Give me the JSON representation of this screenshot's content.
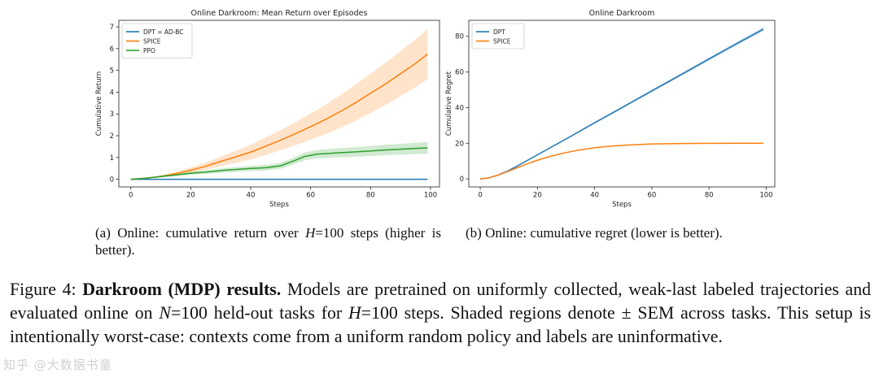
{
  "chart_data": [
    {
      "type": "line",
      "title": "Online Darkroom: Mean Return over Episodes",
      "xlabel": "Steps",
      "ylabel": "Cumulative Return",
      "xlim": [
        -4,
        103
      ],
      "ylim": [
        -0.35,
        7.3
      ],
      "xticks": [
        0,
        20,
        40,
        60,
        80,
        100
      ],
      "yticks": [
        0,
        1,
        2,
        3,
        4,
        5,
        6,
        7
      ],
      "legend_position": "top-left",
      "series": [
        {
          "name": "DPT = AD-BC",
          "color": "#1f77b4",
          "x": [
            0,
            20,
            40,
            60,
            80,
            99
          ],
          "y": [
            0,
            0,
            0,
            0,
            0,
            0
          ],
          "band": [
            0,
            0,
            0,
            0,
            0,
            0
          ]
        },
        {
          "name": "SPICE",
          "color": "#ff7f0e",
          "x": [
            0,
            5,
            10,
            15,
            20,
            25,
            30,
            35,
            40,
            45,
            50,
            55,
            60,
            65,
            70,
            75,
            80,
            85,
            90,
            95,
            99
          ],
          "y": [
            0,
            0.05,
            0.13,
            0.26,
            0.42,
            0.6,
            0.82,
            1.03,
            1.25,
            1.52,
            1.8,
            2.1,
            2.42,
            2.75,
            3.12,
            3.52,
            3.95,
            4.38,
            4.85,
            5.32,
            5.75
          ],
          "band": [
            0,
            0.02,
            0.05,
            0.08,
            0.12,
            0.17,
            0.22,
            0.28,
            0.34,
            0.4,
            0.46,
            0.53,
            0.6,
            0.68,
            0.75,
            0.83,
            0.9,
            0.97,
            1.03,
            1.1,
            1.15
          ]
        },
        {
          "name": "PPO",
          "color": "#2ca02c",
          "x": [
            0,
            5,
            10,
            15,
            20,
            25,
            30,
            35,
            40,
            45,
            50,
            55,
            58,
            62,
            65,
            70,
            75,
            80,
            85,
            90,
            95,
            99
          ],
          "y": [
            0,
            0.05,
            0.13,
            0.2,
            0.28,
            0.33,
            0.4,
            0.45,
            0.5,
            0.53,
            0.62,
            0.88,
            1.05,
            1.15,
            1.18,
            1.22,
            1.26,
            1.3,
            1.35,
            1.38,
            1.42,
            1.44
          ],
          "band": [
            0,
            0.02,
            0.04,
            0.05,
            0.07,
            0.08,
            0.1,
            0.11,
            0.12,
            0.13,
            0.14,
            0.16,
            0.18,
            0.19,
            0.2,
            0.21,
            0.22,
            0.23,
            0.24,
            0.25,
            0.26,
            0.27
          ]
        }
      ]
    },
    {
      "type": "line",
      "title": "Online Darkroom",
      "xlabel": "Steps",
      "ylabel": "Cumulative Regret",
      "xlim": [
        -4,
        103
      ],
      "ylim": [
        -4.5,
        89
      ],
      "xticks": [
        0,
        20,
        40,
        60,
        80,
        100
      ],
      "yticks": [
        0,
        20,
        40,
        60,
        80
      ],
      "legend_position": "top-left",
      "series": [
        {
          "name": "DPT",
          "color": "#1f77b4",
          "x": [
            0,
            3,
            6,
            9,
            12,
            20,
            30,
            40,
            50,
            60,
            70,
            80,
            90,
            99
          ],
          "y": [
            0,
            0.6,
            2.0,
            4.0,
            6.4,
            13.5,
            22.4,
            31.5,
            40.4,
            49.4,
            58.3,
            67.3,
            76.2,
            84.0
          ],
          "band": [
            0,
            0.05,
            0.1,
            0.15,
            0.2,
            0.3,
            0.4,
            0.5,
            0.6,
            0.7,
            0.8,
            0.9,
            1.0,
            1.1
          ]
        },
        {
          "name": "SPICE",
          "color": "#ff7f0e",
          "x": [
            0,
            3,
            6,
            9,
            12,
            15,
            20,
            25,
            30,
            35,
            40,
            45,
            50,
            55,
            60,
            70,
            80,
            90,
            99
          ],
          "y": [
            0,
            0.6,
            2.0,
            3.8,
            5.7,
            7.6,
            10.5,
            12.9,
            14.8,
            16.3,
            17.5,
            18.3,
            18.9,
            19.3,
            19.6,
            19.85,
            19.95,
            20.0,
            20.0
          ],
          "band": [
            0,
            0.05,
            0.1,
            0.12,
            0.15,
            0.17,
            0.2,
            0.2,
            0.2,
            0.2,
            0.2,
            0.2,
            0.2,
            0.2,
            0.2,
            0.2,
            0.2,
            0.2,
            0.2
          ]
        }
      ]
    }
  ],
  "subcaptions": {
    "a_pre": "(a) Online:  cumulative return over ",
    "a_H": "H",
    "a_post": "=100 steps (higher is better).",
    "b": "(b) Online: cumulative regret (lower is better)."
  },
  "caption": {
    "label": "Figure 4:",
    "bold": "Darkroom (MDP) results.",
    "t1": "Models are pretrained on uniformly collected, weak-last labeled trajectories and evaluated online on ",
    "N": "N",
    "t2": "=100 held-out tasks for ",
    "H": "H",
    "t3": "=100 steps. Shaded regions denote ± SEM across tasks. This setup is intentionally worst-case: contexts come from a uniform random policy and labels are uninformative."
  },
  "watermark": "知乎 @大数据书童"
}
